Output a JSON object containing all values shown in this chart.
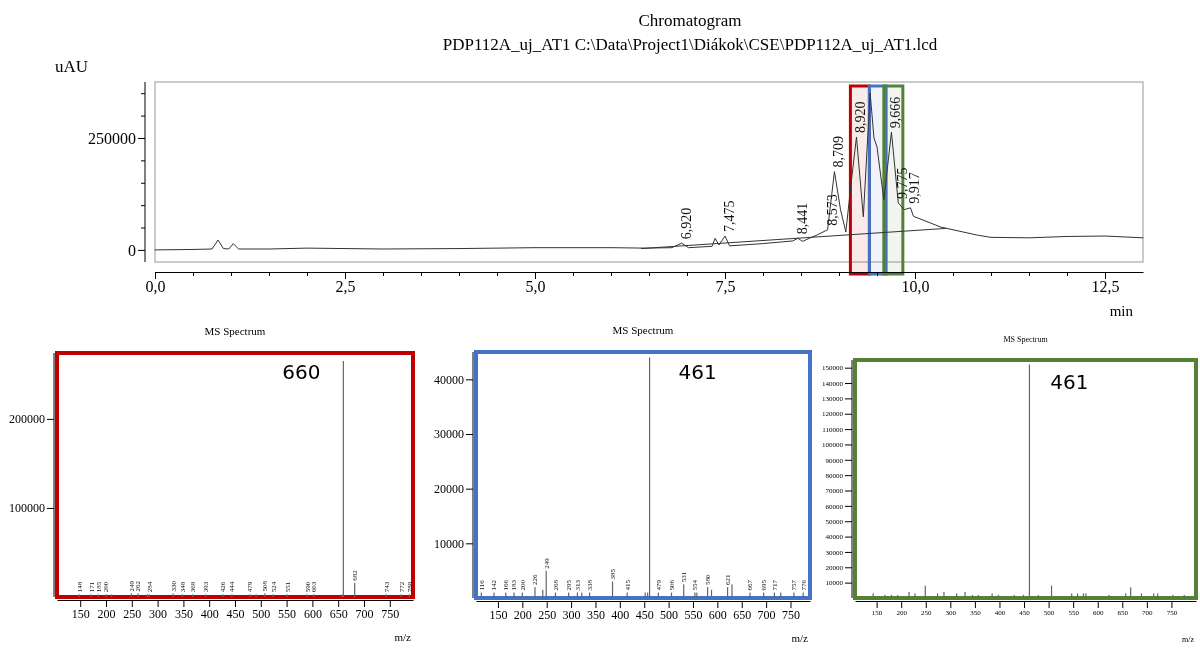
{
  "chart_data": [
    {
      "type": "line",
      "title": "Chromatogram",
      "subtitle": "PDP112A_uj_AT1 C:\\Data\\Project1\\Diákok\\CSE\\PDP112A_uj_AT1.lcd",
      "xlabel": "min",
      "ylabel": "uAU",
      "xlim": [
        0,
        13
      ],
      "ylim": [
        -27000,
        375000
      ],
      "xticks": [
        {
          "value": 0,
          "label": "0,0"
        },
        {
          "value": 0.5,
          "label": null
        },
        {
          "value": 1,
          "label": null
        },
        {
          "value": 1.5,
          "label": null
        },
        {
          "value": 2,
          "label": null
        },
        {
          "value": 2.5,
          "label": "2,5"
        },
        {
          "value": 3,
          "label": null
        },
        {
          "value": 3.5,
          "label": null
        },
        {
          "value": 4,
          "label": null
        },
        {
          "value": 4.5,
          "label": null
        },
        {
          "value": 5,
          "label": "5,0"
        },
        {
          "value": 5.5,
          "label": null
        },
        {
          "value": 6,
          "label": null
        },
        {
          "value": 6.5,
          "label": null
        },
        {
          "value": 7,
          "label": null
        },
        {
          "value": 7.5,
          "label": "7,5"
        },
        {
          "value": 8,
          "label": null
        },
        {
          "value": 8.5,
          "label": null
        },
        {
          "value": 9,
          "label": null
        },
        {
          "value": 9.5,
          "label": null
        },
        {
          "value": 10,
          "label": "10,0"
        },
        {
          "value": 10.5,
          "label": null
        },
        {
          "value": 11,
          "label": null
        },
        {
          "value": 11.5,
          "label": null
        },
        {
          "value": 12,
          "label": null
        },
        {
          "value": 12.5,
          "label": "12,5"
        }
      ],
      "yticks": [
        0,
        {
          "value": 50000,
          "label": null
        },
        {
          "value": 100000,
          "label": null
        },
        {
          "value": 150000,
          "label": null
        },
        {
          "value": 200000,
          "label": null
        },
        250000,
        {
          "value": 300000,
          "label": null
        },
        {
          "value": 350000,
          "label": null
        }
      ],
      "series": [
        {
          "color": "#333333",
          "x": [
            0,
            0.5,
            0.75,
            0.83,
            0.9,
            0.97,
            1.03,
            1.1,
            1.5,
            2,
            3,
            4,
            5,
            6,
            6.45,
            6.8,
            6.93,
            7.02,
            7.33,
            7.37,
            7.42,
            7.5,
            7.56,
            7.99,
            8.39,
            8.46,
            8.52,
            8.61,
            8.72,
            8.85,
            8.94,
            9.02,
            9.09,
            9.16,
            9.23,
            9.32,
            9.41,
            9.46,
            9.5,
            9.59,
            9.69,
            9.78,
            9.86,
            9.94,
            9.98,
            10.34,
            10.82,
            11,
            11.5,
            12,
            12.5,
            13
          ],
          "values": [
            0,
            1000,
            2000,
            22000,
            3000,
            2000,
            14000,
            2000,
            2000,
            4000,
            2000,
            3000,
            5000,
            5000,
            4000,
            5000,
            15000,
            5000,
            8000,
            26000,
            11000,
            31000,
            9000,
            14000,
            20000,
            26000,
            19000,
            26000,
            34000,
            45000,
            175000,
            90000,
            40000,
            150000,
            252000,
            74000,
            350000,
            250000,
            230000,
            112000,
            263000,
            105000,
            90000,
            94000,
            75000,
            51000,
            33000,
            28000,
            27000,
            30000,
            31000,
            27000
          ]
        },
        {
          "color": "#333333",
          "x": [
            6.4,
            10.4
          ],
          "values": [
            3000,
            48000
          ]
        }
      ],
      "annotations": [
        {
          "text": "6,920",
          "x": 6.93,
          "y": 15000
        },
        {
          "text": "7,475",
          "x": 7.5,
          "y": 31000
        },
        {
          "text": "8,441",
          "x": 8.46,
          "y": 26000
        },
        {
          "text": "8,573",
          "x": 8.85,
          "y": 45000
        },
        {
          "text": "8,709",
          "x": 8.94,
          "y": 175000
        },
        {
          "text": "8,920",
          "x": 9.23,
          "y": 252000
        },
        {
          "text": "9,666",
          "x": 9.69,
          "y": 263000
        },
        {
          "text": "9,775",
          "x": 9.78,
          "y": 105000
        },
        {
          "text": "9,917",
          "x": 9.94,
          "y": 94000
        }
      ],
      "bands": [
        {
          "axis": "x",
          "from": 9.15,
          "to": 9.4,
          "color": "#c00000"
        },
        {
          "axis": "x",
          "from": 9.4,
          "to": 9.62,
          "color": "#4472c4"
        },
        {
          "axis": "x",
          "from": 9.59,
          "to": 9.84,
          "color": "#548235"
        }
      ]
    },
    {
      "type": "bar",
      "title": "MS Spectrum",
      "xlabel": "m/z",
      "xlim": [
        105,
        795
      ],
      "ylim": [
        0,
        274000
      ],
      "xticks": [
        150,
        200,
        250,
        300,
        350,
        400,
        450,
        500,
        550,
        600,
        650,
        700,
        750
      ],
      "yticks": [
        100000,
        200000
      ],
      "series": [
        {
          "color": "#666666",
          "x": [
            148,
            171,
            185,
            200,
            211,
            249,
            262,
            280,
            284,
            330,
            348,
            368,
            393,
            426,
            444,
            479,
            491,
            508,
            524,
            551,
            590,
            603,
            657,
            660,
            682,
            743,
            772,
            788
          ],
          "values": [
            3000,
            3000,
            3000,
            3000,
            3000,
            4000,
            4000,
            3000,
            3000,
            4000,
            3000,
            3000,
            3000,
            3000,
            3000,
            3000,
            3000,
            4000,
            3000,
            3000,
            3000,
            3000,
            3000,
            265000,
            16000,
            3000,
            3000,
            3000
          ]
        }
      ],
      "annotations": [
        {
          "text": "660",
          "x": 660,
          "y": 265000
        },
        {
          "text": "148",
          "x": 148,
          "y": 3000
        },
        {
          "text": "171",
          "x": 171,
          "y": 3000
        },
        {
          "text": "185",
          "x": 185,
          "y": 3000
        },
        {
          "text": "200",
          "x": 200,
          "y": 3000
        },
        {
          "text": "249",
          "x": 249,
          "y": 4000
        },
        {
          "text": "262",
          "x": 262,
          "y": 4000
        },
        {
          "text": "284",
          "x": 284,
          "y": 3000
        },
        {
          "text": "330",
          "x": 330,
          "y": 4000
        },
        {
          "text": "348",
          "x": 348,
          "y": 3000
        },
        {
          "text": "368",
          "x": 368,
          "y": 3000
        },
        {
          "text": "393",
          "x": 393,
          "y": 3000
        },
        {
          "text": "426",
          "x": 426,
          "y": 3000
        },
        {
          "text": "444",
          "x": 444,
          "y": 3000
        },
        {
          "text": "479",
          "x": 479,
          "y": 3000
        },
        {
          "text": "508",
          "x": 508,
          "y": 4000
        },
        {
          "text": "524",
          "x": 524,
          "y": 3000
        },
        {
          "text": "551",
          "x": 551,
          "y": 3000
        },
        {
          "text": "590",
          "x": 590,
          "y": 3000
        },
        {
          "text": "603",
          "x": 603,
          "y": 3000
        },
        {
          "text": "682",
          "x": 682,
          "y": 16000
        },
        {
          "text": "743",
          "x": 743,
          "y": 3000
        },
        {
          "text": "772",
          "x": 772,
          "y": 3000
        },
        {
          "text": "788",
          "x": 788,
          "y": 3000
        }
      ]
    },
    {
      "type": "bar",
      "title": "MS Spectrum",
      "xlabel": "m/z",
      "xlim": [
        105,
        790
      ],
      "ylim": [
        0,
        45000
      ],
      "xticks": [
        150,
        200,
        250,
        300,
        350,
        400,
        450,
        500,
        550,
        600,
        650,
        700,
        750
      ],
      "yticks": [
        10000,
        20000,
        30000,
        40000
      ],
      "series": [
        {
          "color": "#666666",
          "x": [
            116,
            142,
            166,
            183,
            200,
            226,
            242,
            249,
            268,
            295,
            313,
            322,
            338,
            385,
            415,
            452,
            457,
            461,
            479,
            506,
            531,
            554,
            558,
            580,
            588,
            621,
            630,
            667,
            695,
            717,
            730,
            757,
            776
          ],
          "values": [
            1000,
            1000,
            1000,
            1000,
            1000,
            2000,
            1500,
            5000,
            1000,
            1000,
            1000,
            1000,
            1000,
            3000,
            1000,
            1000,
            1000,
            44000,
            1000,
            1000,
            2500,
            1000,
            1000,
            2000,
            1500,
            2000,
            2500,
            1000,
            1000,
            1000,
            1000,
            1000,
            1000
          ]
        }
      ],
      "annotations": [
        {
          "text": "461",
          "x": 461,
          "y": 44000
        },
        {
          "text": "116",
          "x": 116,
          "y": 1000
        },
        {
          "text": "142",
          "x": 142,
          "y": 1000
        },
        {
          "text": "166",
          "x": 166,
          "y": 1000
        },
        {
          "text": "183",
          "x": 183,
          "y": 1000
        },
        {
          "text": "200",
          "x": 200,
          "y": 1000
        },
        {
          "text": "226",
          "x": 226,
          "y": 2000
        },
        {
          "text": "249",
          "x": 249,
          "y": 5000
        },
        {
          "text": "268",
          "x": 268,
          "y": 1000
        },
        {
          "text": "295",
          "x": 295,
          "y": 1000
        },
        {
          "text": "313",
          "x": 313,
          "y": 1000
        },
        {
          "text": "338",
          "x": 338,
          "y": 1000
        },
        {
          "text": "385",
          "x": 385,
          "y": 3000
        },
        {
          "text": "415",
          "x": 415,
          "y": 1000
        },
        {
          "text": "479",
          "x": 479,
          "y": 1000
        },
        {
          "text": "506",
          "x": 506,
          "y": 1000
        },
        {
          "text": "531",
          "x": 531,
          "y": 2500
        },
        {
          "text": "554",
          "x": 554,
          "y": 1000
        },
        {
          "text": "580",
          "x": 580,
          "y": 2000
        },
        {
          "text": "621",
          "x": 621,
          "y": 2000
        },
        {
          "text": "667",
          "x": 667,
          "y": 1000
        },
        {
          "text": "695",
          "x": 695,
          "y": 1000
        },
        {
          "text": "717",
          "x": 717,
          "y": 1000
        },
        {
          "text": "757",
          "x": 757,
          "y": 1000
        },
        {
          "text": "776",
          "x": 776,
          "y": 1000
        }
      ]
    },
    {
      "type": "bar",
      "title": "MS Spectrum",
      "xlabel": "m/z",
      "xlim": [
        106,
        800
      ],
      "ylim": [
        0,
        155000
      ],
      "xticks": [
        150,
        200,
        250,
        300,
        350,
        400,
        450,
        500,
        550,
        600,
        650,
        700,
        750
      ],
      "yticks": [
        10000,
        20000,
        30000,
        40000,
        50000,
        60000,
        70000,
        80000,
        90000,
        100000,
        110000,
        120000,
        130000,
        140000,
        150000
      ],
      "series": [
        {
          "color": "#666666",
          "x": [
            143,
            167,
            180,
            193,
            216,
            228,
            249,
            274,
            287,
            313,
            330,
            345,
            357,
            385,
            398,
            430,
            449,
            461,
            479,
            506,
            547,
            559,
            571,
            576,
            623,
            657,
            667,
            689,
            714,
            722,
            753,
            776
          ],
          "values": [
            3000,
            2000,
            2000,
            2000,
            4000,
            3000,
            8000,
            3000,
            4000,
            3000,
            4000,
            2000,
            2000,
            3000,
            2000,
            2000,
            2000,
            152000,
            2000,
            8000,
            3000,
            3000,
            3000,
            3000,
            2000,
            3000,
            7000,
            3000,
            3000,
            3000,
            2000,
            2000
          ]
        }
      ],
      "annotations": [
        {
          "text": "461",
          "x": 461,
          "y": 152000
        }
      ]
    }
  ]
}
